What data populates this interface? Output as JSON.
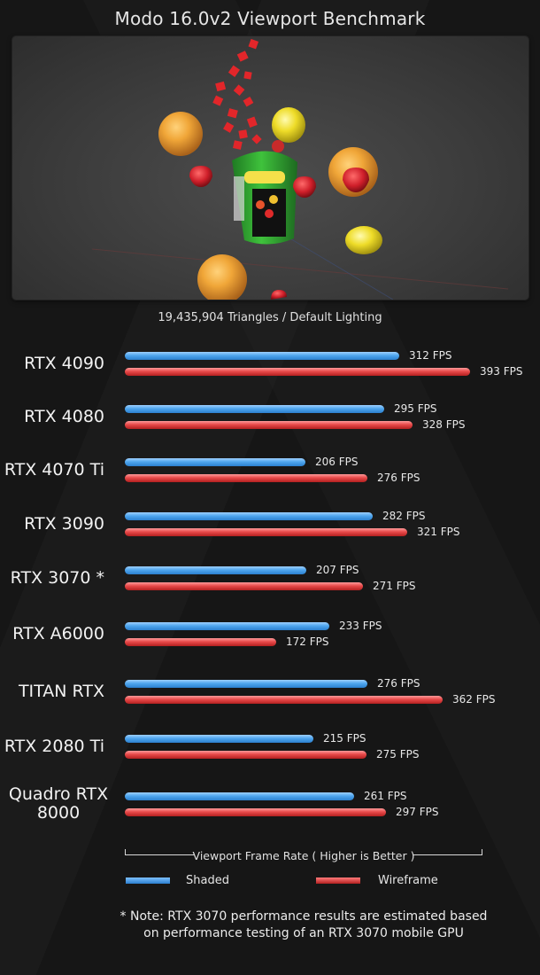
{
  "chart_data": {
    "type": "bar",
    "orientation": "horizontal",
    "title": "Modo 16.0v2 Viewport Benchmark",
    "subtitle": "19,435,904 Triangles   /   Default Lighting",
    "xlabel": "Viewport Frame Rate ( Higher is Better )",
    "unit": "FPS",
    "xlim": [
      0,
      393
    ],
    "grid": false,
    "legend_position": "bottom",
    "categories": [
      "RTX 4090",
      "RTX 4080",
      "RTX 4070 Ti",
      "RTX 3090",
      "RTX 3070 *",
      "RTX A6000",
      "TITAN RTX",
      "RTX 2080 Ti",
      "Quadro RTX 8000"
    ],
    "series": [
      {
        "name": "Shaded",
        "color": "#3a93e2",
        "values": [
          312,
          295,
          206,
          282,
          207,
          233,
          276,
          215,
          261
        ]
      },
      {
        "name": "Wireframe",
        "color": "#d63434",
        "values": [
          393,
          328,
          276,
          321,
          271,
          172,
          362,
          275,
          297
        ]
      }
    ],
    "note": "* Note: RTX 3070 performance results are estimated based on performance testing of an RTX 3070 mobile GPU"
  },
  "note_lines": [
    "* Note: RTX 3070 performance results are estimated based",
    "on performance testing of an RTX 3070 mobile GPU"
  ]
}
